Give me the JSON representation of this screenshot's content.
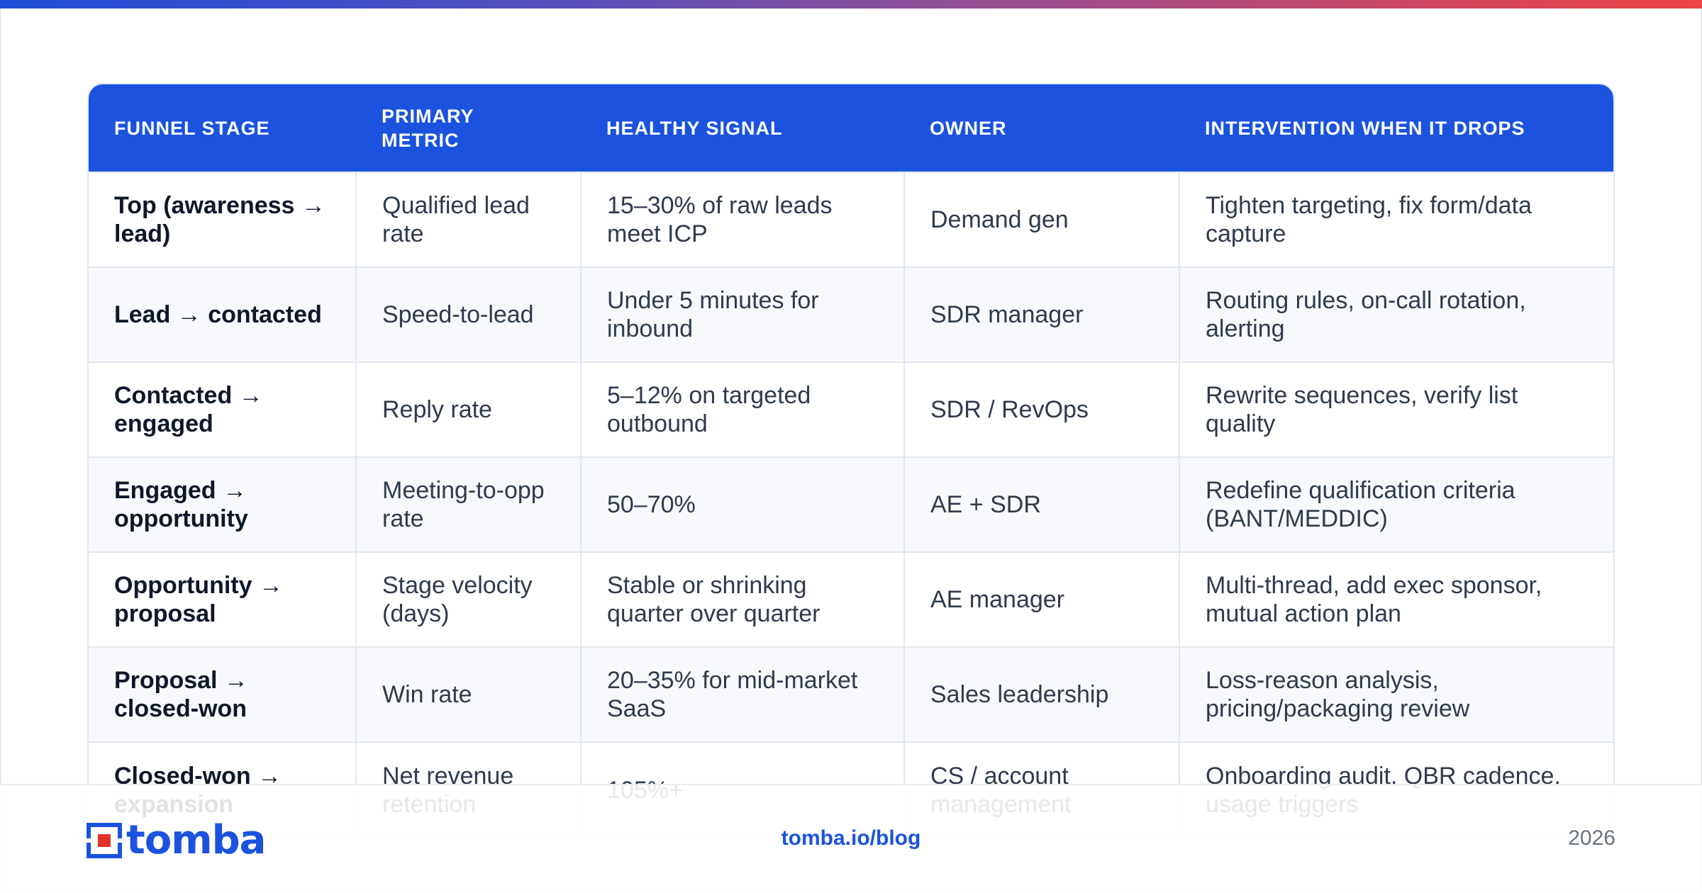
{
  "table": {
    "headers": [
      "FUNNEL STAGE",
      "PRIMARY METRIC",
      "HEALTHY SIGNAL",
      "OWNER",
      "INTERVENTION WHEN IT DROPS"
    ],
    "rows": [
      [
        "Top (awareness → lead)",
        "Qualified lead rate",
        "15–30% of raw leads meet ICP",
        "Demand gen",
        "Tighten targeting, fix form/data capture"
      ],
      [
        "Lead → contacted",
        "Speed-to-lead",
        "Under 5 minutes for inbound",
        "SDR manager",
        "Routing rules, on-call rotation, alerting"
      ],
      [
        "Contacted → engaged",
        "Reply rate",
        "5–12% on targeted outbound",
        "SDR / RevOps",
        "Rewrite sequences, verify list quality"
      ],
      [
        "Engaged → opportunity",
        "Meeting-to-opp rate",
        "50–70%",
        "AE + SDR",
        "Redefine qualification criteria (BANT/MEDDIC)"
      ],
      [
        "Opportunity → proposal",
        "Stage velocity (days)",
        "Stable or shrinking quarter over quarter",
        "AE manager",
        "Multi-thread, add exec sponsor, mutual action plan"
      ],
      [
        "Proposal → closed-won",
        "Win rate",
        "20–35% for mid-market SaaS",
        "Sales leadership",
        "Loss-reason analysis, pricing/packaging review"
      ],
      [
        "Closed-won → expansion",
        "Net revenue retention",
        "105%+",
        "CS / account management",
        "Onboarding audit, QBR cadence, usage triggers"
      ]
    ]
  },
  "footer": {
    "logo_text": "tomba",
    "url": "tomba.io/blog",
    "year": "2026"
  },
  "colors": {
    "brand_blue": "#1b53df",
    "accent_red": "#ef4444"
  },
  "icons": {
    "logo": "tomba-logo-icon"
  }
}
